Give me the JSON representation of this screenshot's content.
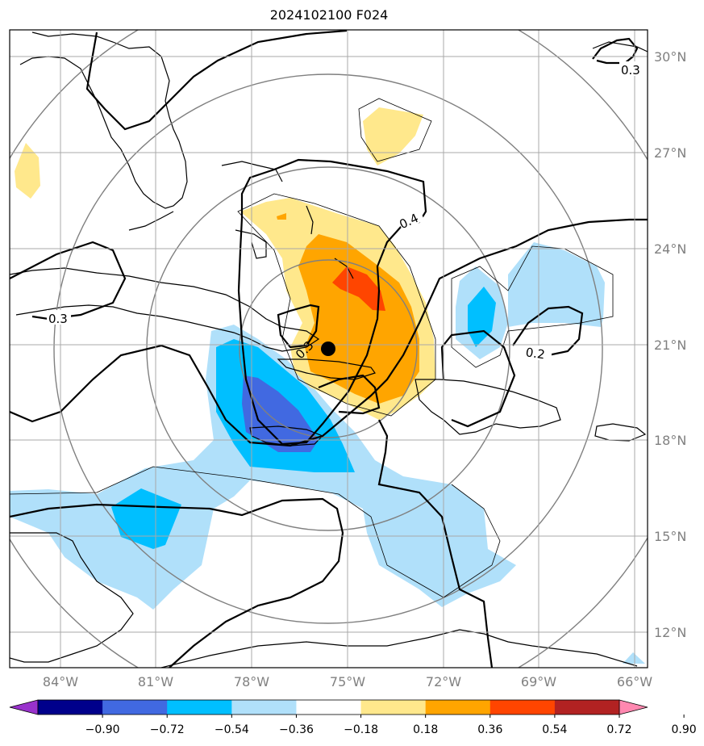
{
  "title": "2024102100 F024",
  "map": {
    "lat_labels": [
      "30°N",
      "27°N",
      "24°N",
      "21°N",
      "18°N",
      "15°N",
      "12°N"
    ],
    "lon_labels": [
      "84°W",
      "81°W",
      "78°W",
      "75°W",
      "72°W",
      "69°W",
      "66°W"
    ],
    "contour_labels": [
      "0.4",
      "0.3",
      "0.3",
      "0.2",
      "0.3"
    ],
    "center_marker": "storm-center"
  },
  "colorbar": {
    "ticks": [
      "−0.90",
      "−0.72",
      "−0.54",
      "−0.36",
      "−0.18",
      "0.18",
      "0.36",
      "0.54",
      "0.72",
      "0.90"
    ],
    "colors": [
      "#9932cc",
      "#00008b",
      "#4169e1",
      "#00bfff",
      "#b0e0fa",
      "#ffffff",
      "#ffe88c",
      "#ffa500",
      "#ff4500",
      "#b22222",
      "#ff88b0"
    ]
  }
}
